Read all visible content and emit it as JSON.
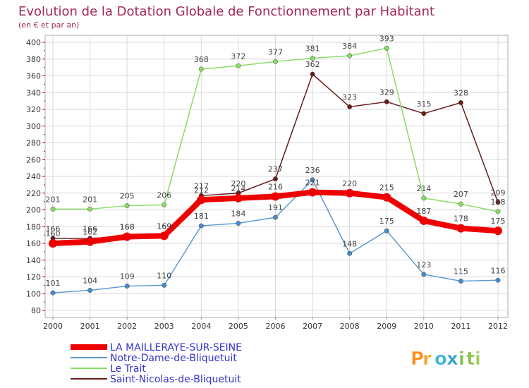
{
  "colors": {
    "background": "#ffffff",
    "plot_background": "#ffffff",
    "grid": "#d9d9d9",
    "axis_ticks": "#cc0000",
    "title": "#a3265a",
    "legend_text": "#3333cc"
  },
  "logo": {
    "text": "Prox iti"
  },
  "chart_data": {
    "type": "line",
    "title": "Evolution de la Dotation Globale de Fonctionnement par Habitant",
    "subtitle": "(en € et par an)",
    "xlabel": "",
    "ylabel": "",
    "categories": [
      "2000",
      "2001",
      "2002",
      "2003",
      "2004",
      "2005",
      "2006",
      "2007",
      "2008",
      "2009",
      "2010",
      "2011",
      "2012"
    ],
    "ylim": [
      80,
      400
    ],
    "yticks": [
      80,
      100,
      120,
      140,
      160,
      180,
      200,
      220,
      240,
      260,
      280,
      300,
      320,
      340,
      360,
      380,
      400
    ],
    "grid": true,
    "legend_position": "bottom-left",
    "series": [
      {
        "name": "Saint-Nicolas-de-Bliquetuit",
        "color": "#6b1a1a",
        "marker": "#6b1a1a",
        "width": 1.5,
        "values": [
          166,
          166,
          168,
          169,
          217,
          220,
          237,
          362,
          323,
          329,
          315,
          328,
          209
        ]
      },
      {
        "name": "Le Trait",
        "color": "#88dd66",
        "marker": "#88dd66",
        "width": 1.5,
        "values": [
          201,
          201,
          205,
          206,
          368,
          372,
          377,
          381,
          384,
          393,
          214,
          207,
          198
        ]
      },
      {
        "name": "Notre-Dame-de-Bliquetuit",
        "color": "#5b9bd5",
        "marker": "#4a8acc",
        "width": 1.5,
        "values": [
          101,
          104,
          109,
          110,
          181,
          184,
          191,
          236,
          148,
          175,
          123,
          115,
          116
        ]
      },
      {
        "name": "LA MAILLERAYE-SUR-SEINE",
        "color": "#ee0000",
        "marker": "#ee0000",
        "width": 8,
        "values": [
          160,
          162,
          168,
          169,
          212,
          214,
          216,
          221,
          220,
          215,
          187,
          178,
          175
        ]
      }
    ],
    "legend_order": [
      "LA MAILLERAYE-SUR-SEINE",
      "Notre-Dame-de-Bliquetuit",
      "Le Trait",
      "Saint-Nicolas-de-Bliquetuit"
    ]
  }
}
